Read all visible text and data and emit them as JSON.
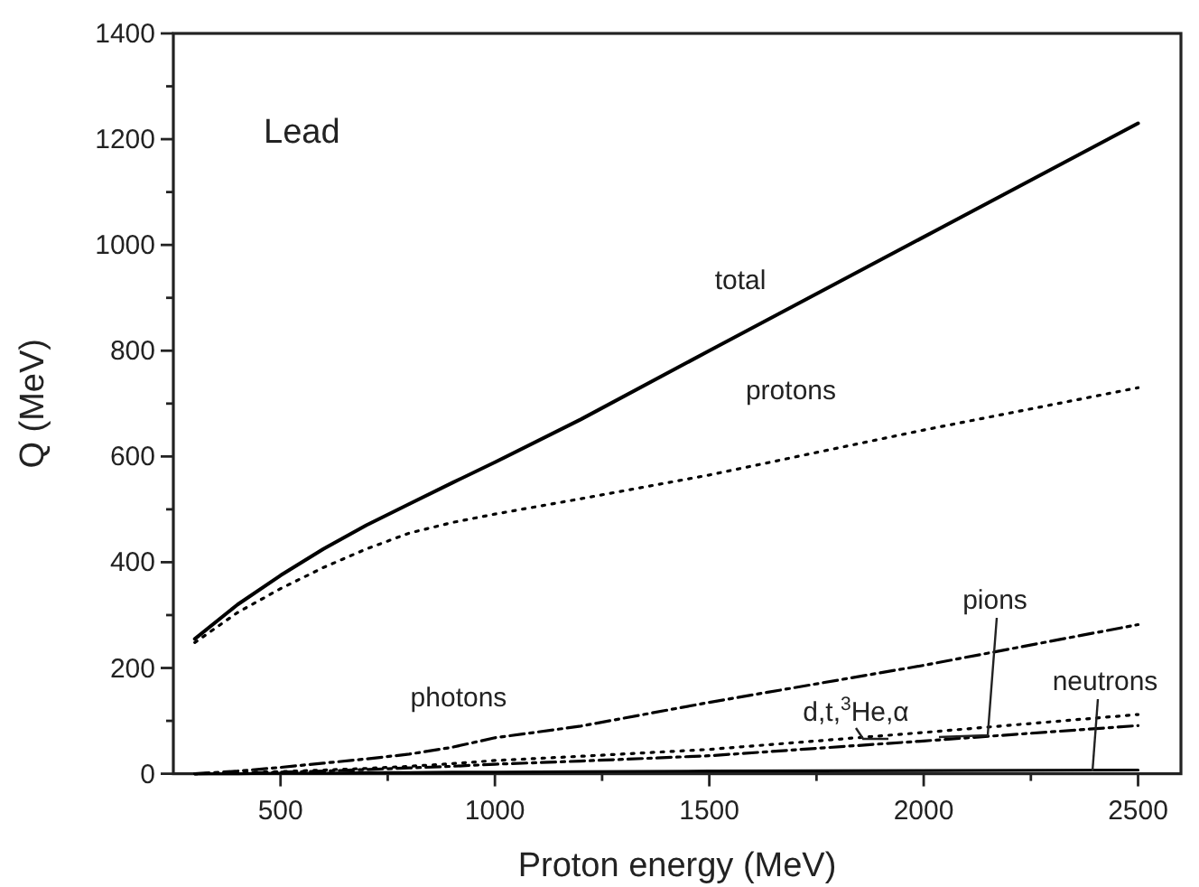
{
  "chart_data": {
    "type": "line",
    "xlabel": "Proton energy (MeV)",
    "ylabel": "Q (MeV)",
    "annotations": [
      "Lead"
    ],
    "xlim": [
      250,
      2600
    ],
    "ylim": [
      0,
      1400
    ],
    "xticks": [
      500,
      {
        "value": 750,
        "label": null
      },
      1000,
      {
        "value": 1250,
        "label": null
      },
      1500,
      {
        "value": 1750,
        "label": null
      },
      2000,
      {
        "value": 2250,
        "label": null
      },
      2500
    ],
    "yticks": [
      0,
      {
        "value": 100,
        "label": null
      },
      200,
      {
        "value": 300,
        "label": null
      },
      400,
      {
        "value": 500,
        "label": null
      },
      600,
      {
        "value": 700,
        "label": null
      },
      800,
      {
        "value": 900,
        "label": null
      },
      1000,
      {
        "value": 1100,
        "label": null
      },
      1200,
      {
        "value": 1300,
        "label": null
      },
      1400
    ],
    "grid": false,
    "marker": "none",
    "x": [
      300,
      400,
      500,
      600,
      700,
      800,
      900,
      1000,
      1200,
      1500,
      2000,
      2500
    ],
    "series": [
      {
        "name": "total",
        "color": "#000000",
        "line_style": "solid",
        "values": [
          255,
          320,
          375,
          425,
          470,
          510,
          550,
          589,
          670,
          800,
          1015,
          1230
        ]
      },
      {
        "name": "protons",
        "color": "#000000",
        "line_style": "dotted",
        "values": [
          248,
          305,
          350,
          390,
          425,
          455,
          475,
          491,
          520,
          565,
          650,
          730
        ]
      },
      {
        "name": "photons",
        "color": "#000000",
        "line_style": "dashed",
        "values": [
          0,
          5,
          12,
          20,
          28,
          37,
          50,
          68,
          90,
          135,
          205,
          282
        ]
      },
      {
        "name": "d,t,$^{3}$He,α",
        "color": "#000000",
        "line_style": "dotted",
        "values": [
          0,
          2,
          4,
          7,
          10,
          14,
          19,
          25,
          33,
          46,
          78,
          112
        ]
      },
      {
        "name": "pions",
        "color": "#000000",
        "line_style": "dashed",
        "values": [
          0,
          1,
          3,
          5,
          8,
          11,
          14,
          18,
          24,
          34,
          62,
          91
        ]
      },
      {
        "name": "neutrons",
        "color": "#000000",
        "line_style": "solid",
        "values": [
          0,
          0,
          1,
          1,
          2,
          2,
          3,
          3,
          4,
          5,
          6,
          7
        ]
      }
    ]
  }
}
